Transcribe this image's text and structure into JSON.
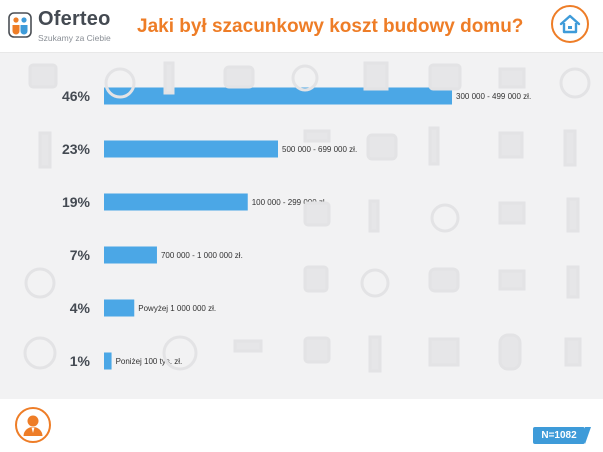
{
  "header": {
    "logo_name": "Oferteo",
    "logo_tagline": "Szukamy za Ciebie",
    "title": "Jaki był szacunkowy koszt budowy domu?",
    "home_icon": "house-icon"
  },
  "footer": {
    "person_icon": "person-icon",
    "sample_size": "N=1082"
  },
  "colors": {
    "bar": "#4ba7e6",
    "title": "#ee7d27",
    "badge": "#3e9bd9",
    "background": "#f2f2f3"
  },
  "chart_data": {
    "type": "bar",
    "orientation": "horizontal",
    "categories": [
      "300 000 - 499 000 zł.",
      "500 000 - 699 000 zł.",
      "100 000 - 299 000 zł.",
      "700 000 - 1 000 000 zł.",
      "Powyżej 1 000 000 zł.",
      "Poniżej 100 tys. zł."
    ],
    "values": [
      46,
      23,
      19,
      7,
      4,
      1
    ],
    "value_labels": [
      "46%",
      "23%",
      "19%",
      "7%",
      "4%",
      "1%"
    ],
    "unit": "%",
    "title": "Jaki był szacunkowy koszt budowy domu?",
    "xlabel": "",
    "ylabel": "",
    "grid": false,
    "legend": "none",
    "n": "N=1082"
  }
}
